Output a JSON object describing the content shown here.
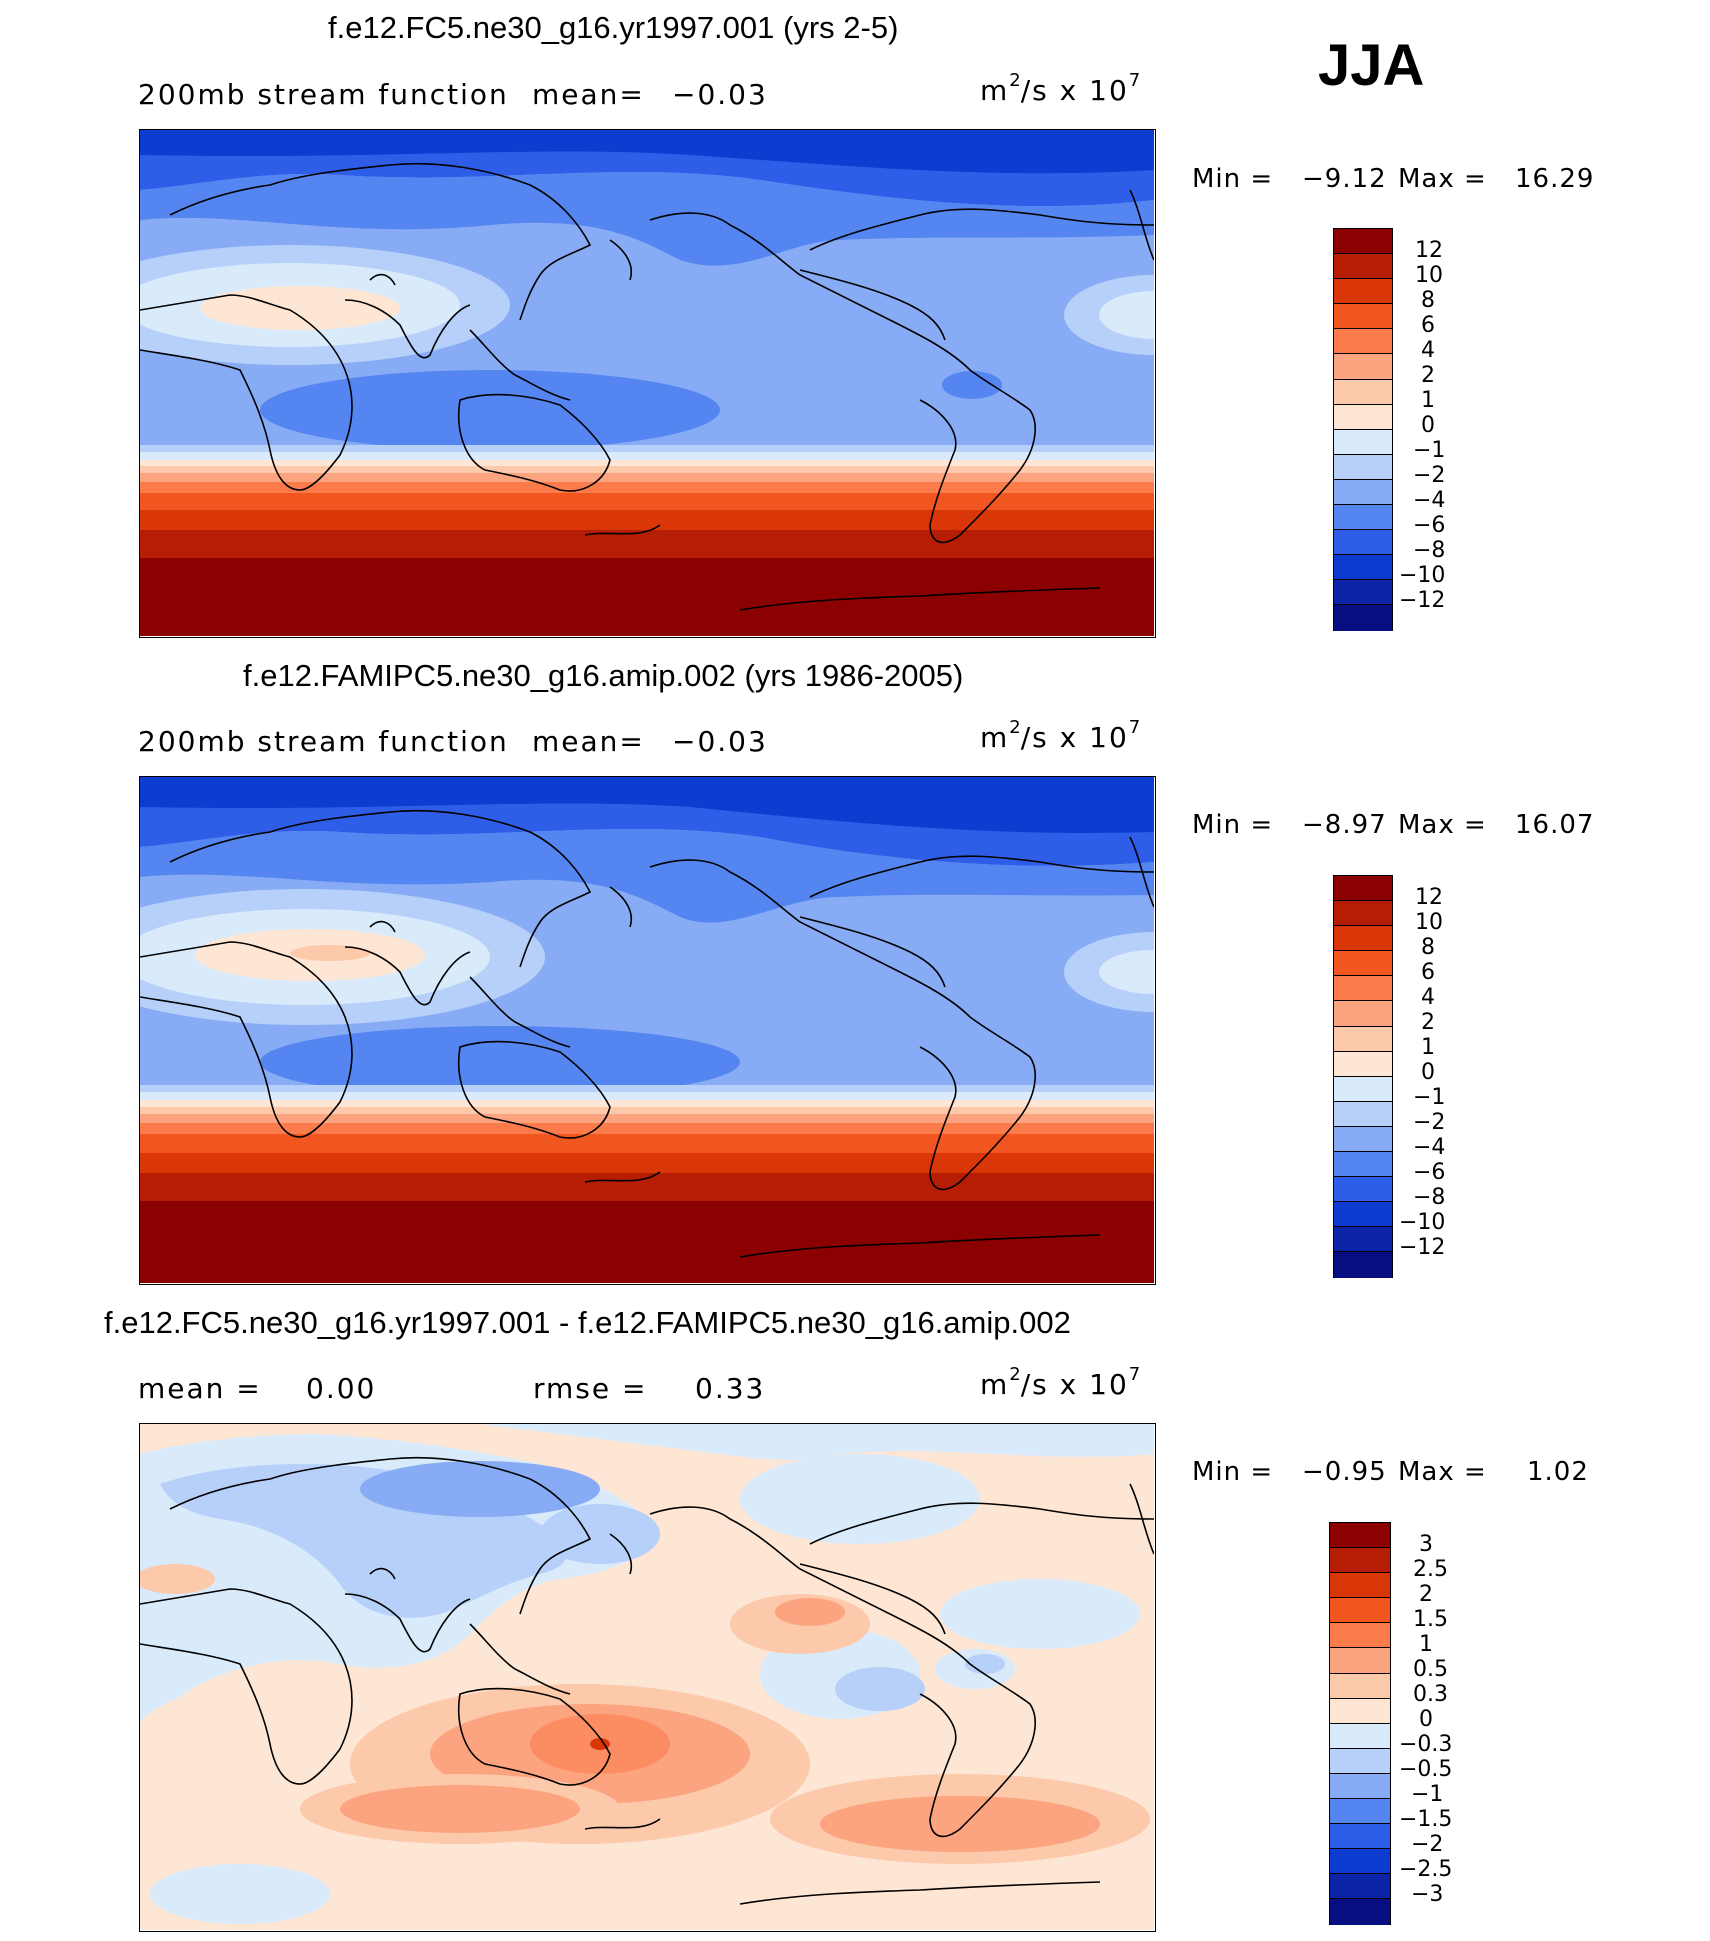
{
  "season": "JJA",
  "panels": [
    {
      "title": "f.e12.FC5.ne30_g16.yr1997.001 (yrs 2-5)",
      "left_label": "200mb stream function",
      "mean_label": "mean=",
      "mean_value": "−0.03",
      "units_base": "m",
      "units_exp": "2",
      "units_mid": "/s x 10",
      "units_pow": "7",
      "min_label": "Min =",
      "min_value": "−9.12",
      "max_label": "Max =",
      "max_value": "16.29",
      "colorbar": [
        "12",
        "10",
        "8",
        "6",
        "4",
        "2",
        "1",
        "0",
        "−1",
        "−2",
        "−4",
        "−6",
        "−8",
        "−10",
        "−12"
      ]
    },
    {
      "title": "f.e12.FAMIPC5.ne30_g16.amip.002 (yrs 1986-2005)",
      "left_label": "200mb stream function",
      "mean_label": "mean=",
      "mean_value": "−0.03",
      "units_base": "m",
      "units_exp": "2",
      "units_mid": "/s x 10",
      "units_pow": "7",
      "min_label": "Min =",
      "min_value": "−8.97",
      "max_label": "Max =",
      "max_value": "16.07",
      "colorbar": [
        "12",
        "10",
        "8",
        "6",
        "4",
        "2",
        "1",
        "0",
        "−1",
        "−2",
        "−4",
        "−6",
        "−8",
        "−10",
        "−12"
      ]
    },
    {
      "title": "f.e12.FC5.ne30_g16.yr1997.001 - f.e12.FAMIPC5.ne30_g16.amip.002",
      "mean_label": "mean =",
      "mean_value": "0.00",
      "rmse_label": "rmse =",
      "rmse_value": "0.33",
      "units_base": "m",
      "units_exp": "2",
      "units_mid": "/s x 10",
      "units_pow": "7",
      "min_label": "Min =",
      "min_value": "−0.95",
      "max_label": "Max =",
      "max_value": "1.02",
      "colorbar": [
        "3",
        "2.5",
        "2",
        "1.5",
        "1",
        "0.5",
        "0.3",
        "0",
        "−0.3",
        "−0.5",
        "−1",
        "−1.5",
        "−2",
        "−2.5",
        "−3"
      ]
    }
  ],
  "colors": {
    "scale": [
      "#8b0000",
      "#b51d04",
      "#da3708",
      "#f25620",
      "#fb7c4a",
      "#fca37f",
      "#fdc9ab",
      "#fde6d4",
      "#d9eafb",
      "#b6d0f9",
      "#87acf5",
      "#5585f0",
      "#2e5ee8",
      "#0f3cd0",
      "#0b24a8",
      "#060e80"
    ],
    "coast": "#000000"
  }
}
